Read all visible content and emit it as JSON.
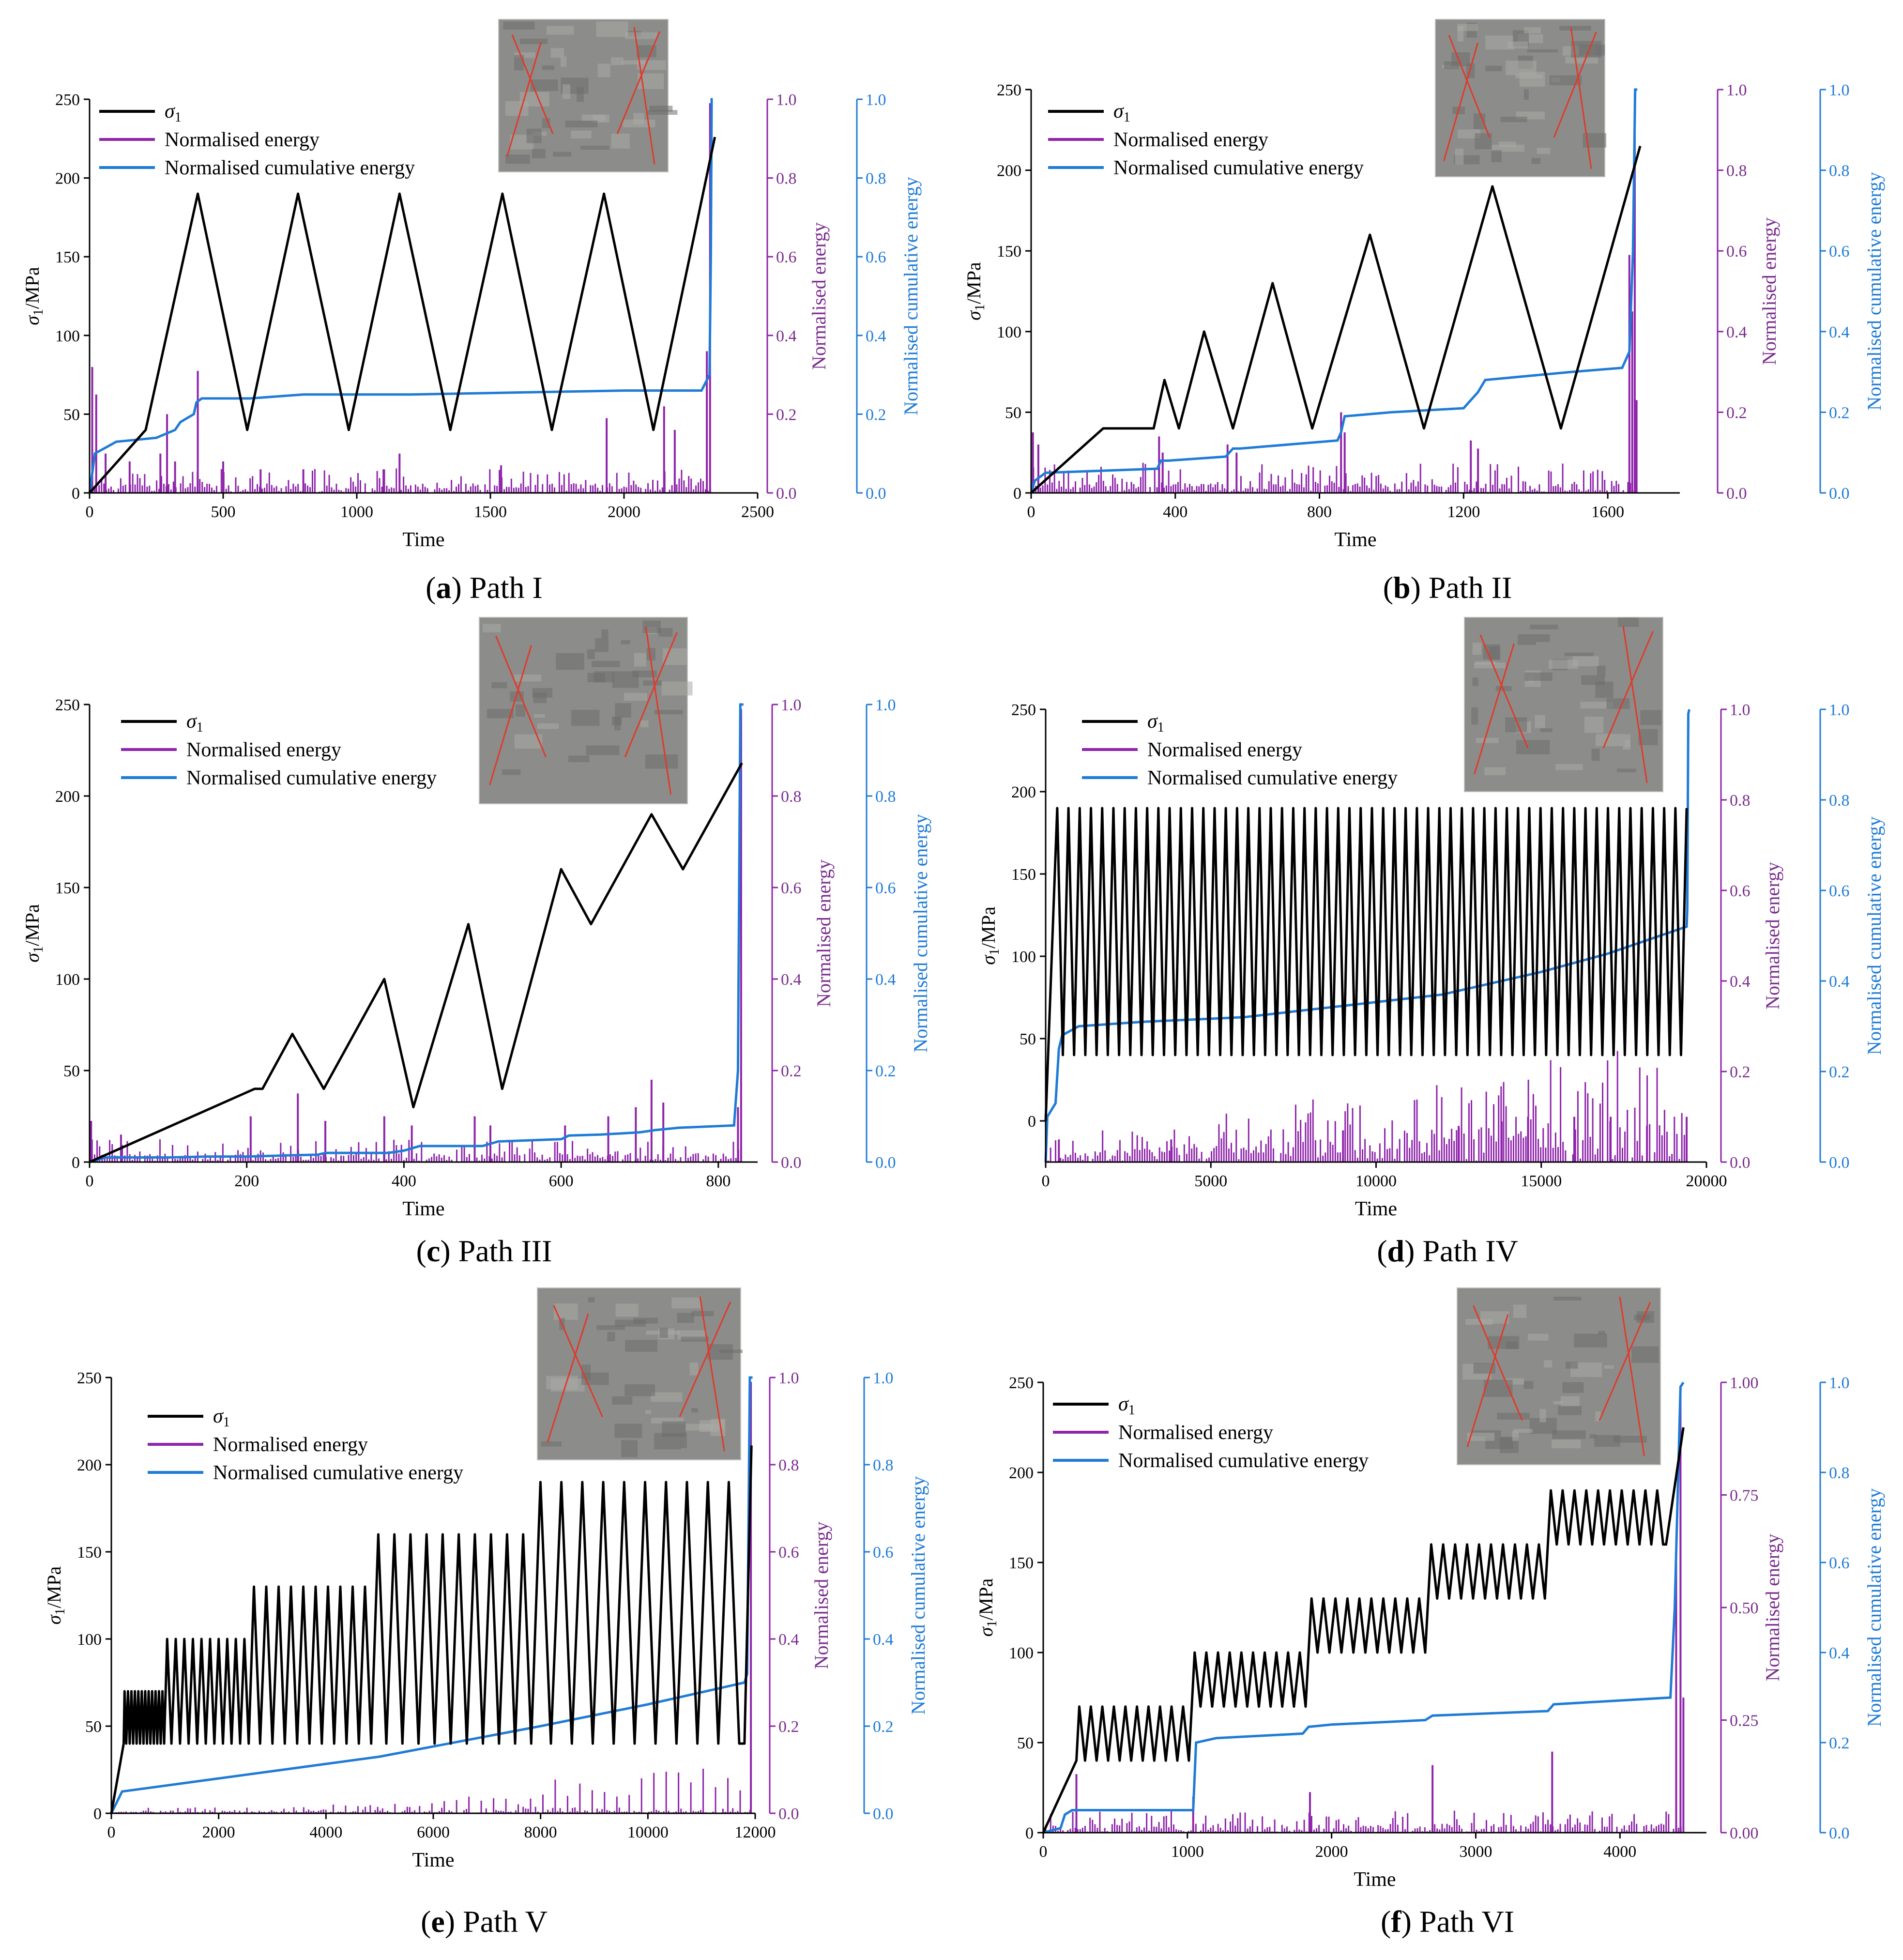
{
  "colors": {
    "stress": "#000000",
    "energy": "#8e24aa",
    "cumulative": "#1f7bd6",
    "photo": "#8c8c8a",
    "crack": "#e03a2a"
  },
  "legend": {
    "stress": "σ1",
    "stress_sym": "σ",
    "stress_sub": "1",
    "energy": "Normalised energy",
    "cumulative": "Normalised cumulative energy"
  },
  "axes": {
    "ylabel_left": "σ1/MPa",
    "ylabel_left_sym": "σ",
    "ylabel_left_sub": "1",
    "ylabel_left_unit": "/MPa",
    "ylabel_mid": "Normalised energy",
    "ylabel_right": "Normalised cumulative energy",
    "xlabel": "Time"
  },
  "chart_data": [
    {
      "id": "a",
      "caption_letter": "a",
      "caption_text": "Path I",
      "type": "line",
      "xlim": [
        0,
        2500
      ],
      "xticks": [
        "0",
        "500",
        "1000",
        "1500",
        "2000",
        "2500"
      ],
      "ylim": [
        0,
        250
      ],
      "yticks": [
        "0",
        "50",
        "100",
        "150",
        "200",
        "250"
      ],
      "energy_ylim": [
        0,
        1.0
      ],
      "energy_ticks": [
        "0.0",
        "0.2",
        "0.4",
        "0.6",
        "0.8",
        "1.0"
      ],
      "cum_ylim": [
        0,
        1.0
      ],
      "cum_ticks": [
        "0.0",
        "0.2",
        "0.4",
        "0.6",
        "0.8",
        "1.0"
      ],
      "stress": {
        "x": [
          0,
          210,
          405,
          590,
          780,
          970,
          1160,
          1350,
          1545,
          1730,
          1925,
          2110,
          2340
        ],
        "y": [
          0,
          40,
          190,
          40,
          190,
          40,
          190,
          40,
          190,
          40,
          190,
          40,
          226
        ]
      },
      "cumulative": {
        "x": [
          0,
          20,
          100,
          250,
          320,
          340,
          390,
          400,
          420,
          600,
          800,
          1200,
          1600,
          2000,
          2290,
          2320,
          2325,
          2328,
          2332
        ],
        "y": [
          0,
          0.1,
          0.13,
          0.14,
          0.16,
          0.18,
          0.2,
          0.23,
          0.24,
          0.24,
          0.25,
          0.25,
          0.255,
          0.26,
          0.26,
          0.3,
          0.6,
          1.0,
          1.0
        ]
      },
      "energy_spikes": {
        "x": [
          10,
          25,
          60,
          150,
          265,
          290,
          320,
          405,
          500,
          640,
          800,
          1100,
          1160,
          1540,
          1935,
          2150,
          2190,
          2310,
          2322
        ],
        "y": [
          0.32,
          0.25,
          0.1,
          0.08,
          0.1,
          0.2,
          0.08,
          0.31,
          0.08,
          0.06,
          0.06,
          0.06,
          0.1,
          0.07,
          0.19,
          0.22,
          0.16,
          0.36,
          0.99
        ]
      },
      "energy_seed": 11,
      "energy_base": 0.025
    },
    {
      "id": "b",
      "caption_letter": "b",
      "caption_text": "Path II",
      "type": "line",
      "xlim": [
        0,
        1800
      ],
      "xticks": [
        "0",
        "400",
        "800",
        "1200",
        "1600"
      ],
      "xtick_vals": [
        0,
        400,
        800,
        1200,
        1600
      ],
      "ylim": [
        0,
        250
      ],
      "yticks": [
        "0",
        "50",
        "100",
        "150",
        "200",
        "250"
      ],
      "energy_ylim": [
        0,
        1.0
      ],
      "energy_ticks": [
        "0.0",
        "0.2",
        "0.4",
        "0.6",
        "0.8",
        "1.0"
      ],
      "cum_ylim": [
        0,
        1.0
      ],
      "cum_ticks": [
        "0.0",
        "0.2",
        "0.4",
        "0.6",
        "0.8",
        "1.0"
      ],
      "stress": {
        "x": [
          0,
          200,
          340,
          370,
          410,
          480,
          560,
          670,
          780,
          940,
          1090,
          1280,
          1470,
          1690
        ],
        "y": [
          0,
          40,
          40,
          70,
          40,
          100,
          40,
          130,
          40,
          160,
          40,
          190,
          40,
          215
        ]
      },
      "cumulative": {
        "x": [
          0,
          10,
          40,
          200,
          350,
          360,
          380,
          540,
          560,
          580,
          850,
          860,
          870,
          1000,
          1200,
          1240,
          1260,
          1500,
          1640,
          1660,
          1670,
          1676,
          1682
        ],
        "y": [
          0,
          0.03,
          0.05,
          0.055,
          0.06,
          0.08,
          0.08,
          0.09,
          0.11,
          0.11,
          0.13,
          0.15,
          0.19,
          0.2,
          0.21,
          0.25,
          0.28,
          0.3,
          0.31,
          0.35,
          0.6,
          1.0,
          1.0
        ]
      },
      "energy_spikes": {
        "x": [
          5,
          20,
          355,
          365,
          545,
          570,
          860,
          870,
          1220,
          1240,
          1660,
          1668,
          1675,
          1680
        ],
        "y": [
          0.15,
          0.12,
          0.14,
          0.1,
          0.12,
          0.1,
          0.2,
          0.15,
          0.13,
          0.11,
          0.59,
          0.45,
          0.99,
          0.23
        ]
      },
      "energy_seed": 23,
      "energy_base": 0.03
    },
    {
      "id": "c",
      "caption_letter": "c",
      "caption_text": "Path III",
      "type": "line",
      "xlim": [
        0,
        850
      ],
      "xticks": [
        "0",
        "200",
        "400",
        "600",
        "800"
      ],
      "xtick_vals": [
        0,
        200,
        400,
        600,
        800
      ],
      "ylim": [
        0,
        250
      ],
      "yticks": [
        "0",
        "50",
        "100",
        "150",
        "200",
        "250"
      ],
      "energy_ylim": [
        0,
        1.0
      ],
      "energy_ticks": [
        "0.0",
        "0.2",
        "0.4",
        "0.6",
        "0.8",
        "1.0"
      ],
      "cum_ylim": [
        0,
        1.0
      ],
      "cum_ticks": [
        "0.0",
        "0.2",
        "0.4",
        "0.6",
        "0.8",
        "1.0"
      ],
      "stress": {
        "x": [
          0,
          210,
          220,
          258,
          298,
          375,
          412,
          482,
          525,
          600,
          638,
          715,
          755,
          830
        ],
        "y": [
          0,
          40,
          40,
          70,
          40,
          100,
          30,
          130,
          40,
          160,
          130,
          190,
          160,
          218
        ]
      },
      "cumulative": {
        "x": [
          0,
          20,
          100,
          150,
          200,
          260,
          290,
          300,
          380,
          400,
          420,
          500,
          520,
          600,
          610,
          650,
          700,
          720,
          750,
          820,
          825,
          828,
          832
        ],
        "y": [
          0,
          0.01,
          0.01,
          0.012,
          0.012,
          0.015,
          0.016,
          0.02,
          0.02,
          0.025,
          0.035,
          0.035,
          0.045,
          0.05,
          0.058,
          0.06,
          0.065,
          0.07,
          0.075,
          0.08,
          0.2,
          1.0,
          1.0
        ]
      },
      "energy_spikes": {
        "x": [
          2,
          40,
          205,
          265,
          300,
          375,
          410,
          490,
          510,
          605,
          660,
          695,
          715,
          730,
          825,
          829
        ],
        "y": [
          0.09,
          0.06,
          0.1,
          0.15,
          0.09,
          0.1,
          0.08,
          0.1,
          0.08,
          0.08,
          0.1,
          0.12,
          0.18,
          0.13,
          0.12,
          0.99
        ]
      },
      "energy_seed": 37,
      "energy_base": 0.02
    },
    {
      "id": "d",
      "caption_letter": "d",
      "caption_text": "Path IV",
      "type": "line",
      "xlim": [
        0,
        20000
      ],
      "xticks": [
        "0",
        "5000",
        "10000",
        "15000",
        "20000"
      ],
      "xtick_vals": [
        0,
        5000,
        10000,
        15000,
        20000
      ],
      "ylim": [
        -25,
        250
      ],
      "yticks": [
        "0",
        "50",
        "100",
        "150",
        "200",
        "250"
      ],
      "ytick_vals": [
        0,
        50,
        100,
        150,
        200,
        250
      ],
      "energy_ylim": [
        0,
        1.0
      ],
      "energy_ticks": [
        "0.0",
        "0.2",
        "0.4",
        "0.6",
        "0.8",
        "1.0"
      ],
      "cum_ylim": [
        0,
        1.0
      ],
      "cum_ticks": [
        "0.0",
        "0.2",
        "0.4",
        "0.6",
        "0.8",
        "1.0"
      ],
      "cyclic": {
        "start_x": 0,
        "start_y": 0,
        "first_peak_x": 350,
        "cycles": 56,
        "x_end": 19400,
        "high": 190,
        "low": 40,
        "final_x": 19400,
        "final_y": 190
      },
      "cumulative": {
        "x": [
          0,
          50,
          300,
          400,
          500,
          1000,
          3000,
          6000,
          9000,
          12000,
          15000,
          17000,
          19400,
          19420,
          19450,
          19480
        ],
        "y": [
          0,
          0.1,
          0.13,
          0.25,
          0.28,
          0.3,
          0.31,
          0.32,
          0.345,
          0.37,
          0.42,
          0.46,
          0.52,
          0.56,
          0.99,
          1.0
        ]
      },
      "energy_spikes": {
        "x": [
          400,
          3800,
          9000,
          12500,
          13800,
          14600,
          16000,
          17100,
          18200,
          19400
        ],
        "y": [
          0.05,
          0.05,
          0.07,
          0.08,
          0.09,
          0.1,
          0.1,
          0.1,
          0.08,
          0.1
        ]
      },
      "energy_seed": 41,
      "energy_base": 0.05,
      "energy_trend": true
    },
    {
      "id": "e",
      "caption_letter": "e",
      "caption_text": "Path V",
      "type": "line",
      "xlim": [
        0,
        12000
      ],
      "xticks": [
        "0",
        "2000",
        "4000",
        "6000",
        "8000",
        "10000",
        "12000"
      ],
      "xtick_vals": [
        0,
        2000,
        4000,
        6000,
        8000,
        10000,
        12000
      ],
      "ylim": [
        0,
        250
      ],
      "yticks": [
        "0",
        "50",
        "100",
        "150",
        "200",
        "250"
      ],
      "energy_ylim": [
        0,
        1.0
      ],
      "energy_ticks": [
        "0.0",
        "0.2",
        "0.4",
        "0.6",
        "0.8",
        "1.0"
      ],
      "cum_ylim": [
        0,
        1.0
      ],
      "cum_ticks": [
        "0.0",
        "0.2",
        "0.4",
        "0.6",
        "0.8",
        "1.0"
      ],
      "stages": [
        {
          "x0": 230,
          "x1": 1000,
          "high": 70,
          "low": 40,
          "cycles": 12
        },
        {
          "x0": 1000,
          "x1": 2600,
          "high": 100,
          "low": 40,
          "cycles": 10
        },
        {
          "x0": 2600,
          "x1": 4900,
          "high": 130,
          "low": 40,
          "cycles": 10
        },
        {
          "x0": 4900,
          "x1": 7900,
          "high": 160,
          "low": 40,
          "cycles": 10
        },
        {
          "x0": 7900,
          "x1": 11800,
          "high": 190,
          "low": 40,
          "cycles": 10
        }
      ],
      "final": {
        "x": [
          11800,
          11930
        ],
        "y": [
          40,
          211
        ]
      },
      "cumulative": {
        "x": [
          0,
          200,
          2000,
          5000,
          8000,
          10000,
          11800,
          11850,
          11900,
          11950
        ],
        "y": [
          0,
          0.05,
          0.08,
          0.13,
          0.2,
          0.25,
          0.3,
          0.32,
          1.0,
          1.0
        ]
      },
      "energy_spikes": {
        "x": [
          11920
        ],
        "y": [
          0.99
        ]
      },
      "energy_seed": 53,
      "energy_base": 0.006,
      "energy_stage_peaks": [
        0.005,
        0.01,
        0.02,
        0.035,
        0.075,
        0.1
      ]
    },
    {
      "id": "f",
      "caption_letter": "f",
      "caption_text": "Path VI",
      "type": "line",
      "xlim": [
        0,
        4600
      ],
      "xticks": [
        "0",
        "1000",
        "2000",
        "3000",
        "4000"
      ],
      "xtick_vals": [
        0,
        1000,
        2000,
        3000,
        4000
      ],
      "ylim": [
        0,
        250
      ],
      "yticks": [
        "0",
        "50",
        "100",
        "150",
        "200",
        "250"
      ],
      "energy_ylim": [
        0,
        1.0
      ],
      "energy_ticks": [
        "0.00",
        "0.25",
        "0.50",
        "0.75",
        "1.00"
      ],
      "energy_tick_vals": [
        0,
        0.25,
        0.5,
        0.75,
        1.0
      ],
      "cum_ylim": [
        0,
        1.0
      ],
      "cum_ticks": [
        "0.0",
        "0.2",
        "0.4",
        "0.6",
        "0.8",
        "1.0"
      ],
      "stages": [
        {
          "x0": 230,
          "x1": 1030,
          "high": 70,
          "low": 40,
          "cycles": 10
        },
        {
          "x0": 1030,
          "x1": 1840,
          "high": 100,
          "low": 70,
          "cycles": 10
        },
        {
          "x0": 1840,
          "x1": 2670,
          "high": 130,
          "low": 100,
          "cycles": 10
        },
        {
          "x0": 2670,
          "x1": 3500,
          "high": 160,
          "low": 130,
          "cycles": 10
        },
        {
          "x0": 3500,
          "x1": 4320,
          "high": 190,
          "low": 160,
          "cycles": 10
        }
      ],
      "final": {
        "x": [
          4320,
          4440
        ],
        "y": [
          160,
          225
        ]
      },
      "cumulative": {
        "x": [
          0,
          120,
          150,
          200,
          1000,
          1040,
          1060,
          1200,
          1800,
          1840,
          2000,
          2650,
          2700,
          3500,
          3540,
          4350,
          4380,
          4420,
          4440
        ],
        "y": [
          0,
          0.01,
          0.04,
          0.05,
          0.05,
          0.05,
          0.2,
          0.21,
          0.22,
          0.235,
          0.24,
          0.25,
          0.26,
          0.27,
          0.285,
          0.3,
          0.5,
          0.99,
          1.0
        ]
      },
      "energy_spikes": {
        "x": [
          230,
          1040,
          1850,
          2700,
          3530,
          4390,
          4420,
          4440
        ],
        "y": [
          0.13,
          0.08,
          0.09,
          0.15,
          0.18,
          0.6,
          0.99,
          0.3
        ]
      },
      "energy_seed": 67,
      "energy_base": 0.02
    }
  ]
}
